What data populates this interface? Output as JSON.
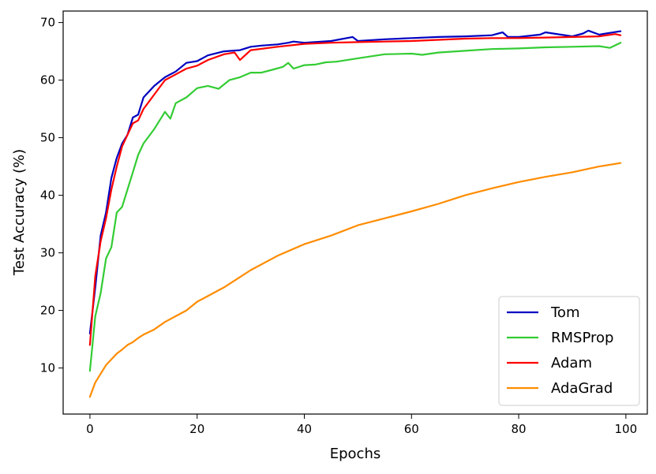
{
  "chart_data": {
    "type": "line",
    "xlabel": "Epochs",
    "ylabel": "Test Accuracy (%)",
    "xlim": [
      -5,
      104
    ],
    "ylim": [
      2,
      72
    ],
    "xticks": [
      0,
      20,
      40,
      60,
      80,
      100
    ],
    "yticks": [
      10,
      20,
      30,
      40,
      50,
      60,
      70
    ],
    "grid": false,
    "legend_position": "bottom-right",
    "series": [
      {
        "name": "Tom",
        "color": "#0000c0",
        "x": [
          0,
          1,
          2,
          3,
          4,
          5,
          6,
          7,
          8,
          9,
          10,
          12,
          14,
          16,
          18,
          20,
          22,
          25,
          28,
          30,
          32,
          35,
          37,
          38,
          40,
          45,
          49,
          50,
          55,
          60,
          65,
          70,
          75,
          77,
          78,
          80,
          84,
          85,
          90,
          92,
          93,
          95,
          99
        ],
        "y": [
          16,
          24,
          33,
          37,
          43,
          46.5,
          49,
          50.5,
          53.5,
          54,
          57,
          59,
          60.5,
          61.5,
          63,
          63.3,
          64.3,
          65,
          65.2,
          65.8,
          66,
          66.2,
          66.5,
          66.7,
          66.5,
          66.8,
          67.5,
          66.8,
          67.1,
          67.3,
          67.5,
          67.6,
          67.8,
          68.3,
          67.5,
          67.5,
          67.9,
          68.3,
          67.6,
          68.1,
          68.6,
          67.9,
          68.5
        ]
      },
      {
        "name": "RMSProp",
        "color": "#33cc33",
        "x": [
          0,
          1,
          2,
          3,
          4,
          5,
          6,
          7,
          8,
          9,
          10,
          12,
          14,
          15,
          16,
          18,
          20,
          22,
          24,
          26,
          28,
          30,
          32,
          34,
          36,
          37,
          38,
          40,
          42,
          44,
          46,
          48,
          50,
          55,
          60,
          62,
          65,
          70,
          75,
          80,
          85,
          90,
          95,
          97,
          99
        ],
        "y": [
          9.5,
          19,
          23,
          29,
          31,
          37,
          38,
          41,
          44,
          47,
          49,
          51.5,
          54.5,
          53.3,
          56,
          57,
          58.6,
          59,
          58.5,
          60,
          60.5,
          61.3,
          61.3,
          61.8,
          62.3,
          63,
          62,
          62.6,
          62.7,
          63.1,
          63.2,
          63.5,
          63.8,
          64.5,
          64.6,
          64.4,
          64.8,
          65.1,
          65.4,
          65.5,
          65.7,
          65.8,
          65.9,
          65.6,
          66.5
        ]
      },
      {
        "name": "Adam",
        "color": "#ff0000",
        "x": [
          0,
          1,
          2,
          3,
          4,
          5,
          6,
          7,
          8,
          9,
          10,
          12,
          14,
          16,
          18,
          20,
          22,
          25,
          27,
          28,
          30,
          35,
          40,
          45,
          50,
          55,
          60,
          65,
          70,
          75,
          80,
          85,
          90,
          95,
          98,
          99
        ],
        "y": [
          14,
          26,
          32,
          36,
          41,
          45,
          48.5,
          50.5,
          52.5,
          53,
          55,
          57.5,
          60,
          61,
          62,
          62.5,
          63.5,
          64.5,
          64.8,
          63.5,
          65.2,
          65.8,
          66.3,
          66.5,
          66.6,
          66.7,
          66.8,
          67,
          67.2,
          67.3,
          67.3,
          67.4,
          67.5,
          67.6,
          68,
          67.8
        ]
      },
      {
        "name": "AdaGrad",
        "color": "#ff8c00",
        "x": [
          0,
          1,
          2,
          3,
          4,
          5,
          6,
          7,
          8,
          9,
          10,
          12,
          14,
          16,
          18,
          20,
          22,
          25,
          28,
          30,
          35,
          40,
          45,
          50,
          55,
          60,
          65,
          70,
          75,
          80,
          85,
          90,
          95,
          99
        ],
        "y": [
          5,
          7.5,
          9,
          10.5,
          11.5,
          12.5,
          13.2,
          14,
          14.5,
          15.2,
          15.8,
          16.7,
          18,
          19,
          20,
          21.5,
          22.5,
          24,
          25.8,
          27,
          29.5,
          31.5,
          33,
          34.8,
          36,
          37.2,
          38.5,
          40,
          41.2,
          42.3,
          43.2,
          44,
          45,
          45.6
        ]
      }
    ]
  }
}
